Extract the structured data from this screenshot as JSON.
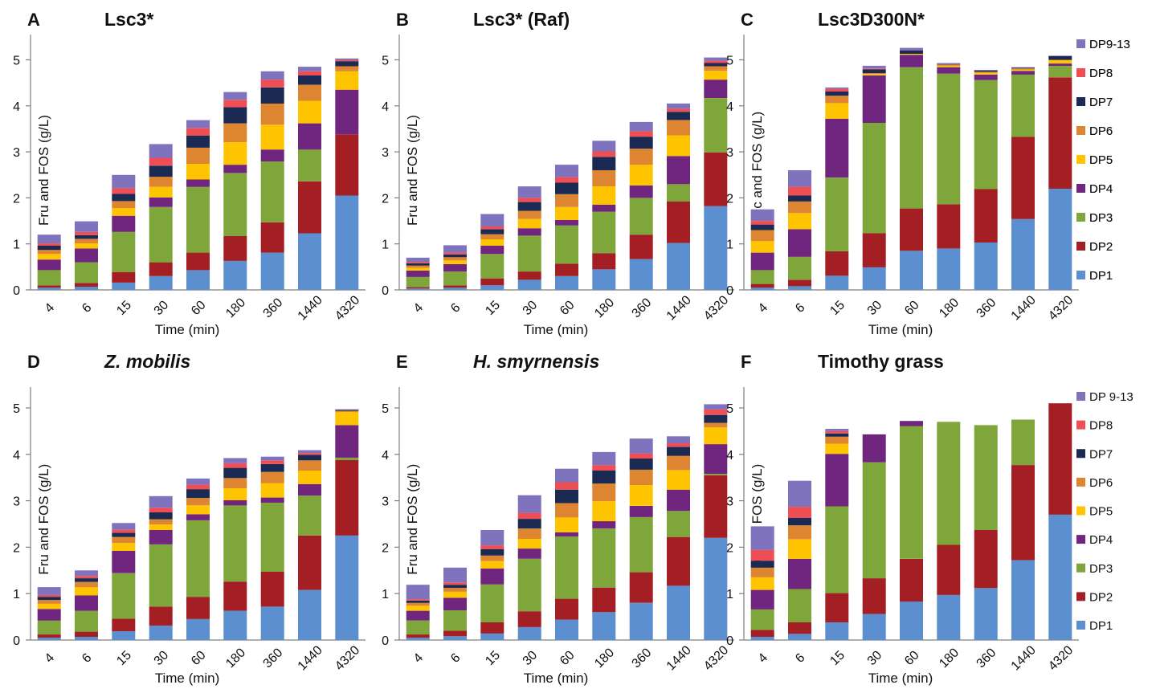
{
  "colors": {
    "DP1": "#5b8fd0",
    "DP2": "#a31f23",
    "DP3": "#7fa63a",
    "DP4": "#70257e",
    "DP5": "#ffc400",
    "DP6": "#dd8531",
    "DP7": "#1b2a52",
    "DP8": "#f04e55",
    "DP9_13": "#8073be"
  },
  "chart_data": [
    {
      "type": "bar",
      "stacked": true,
      "panel_letter": "A",
      "title": "Lsc3*",
      "title_italic": false,
      "ylabel": "Fru and FOS (g/L)",
      "xlabel": "Time (min)",
      "categories": [
        "4",
        "6",
        "15",
        "30",
        "60",
        "180",
        "360",
        "1440",
        "4320"
      ],
      "ylim": [
        0,
        5.3
      ],
      "yticks": [
        "0",
        "1",
        "2",
        "3",
        "4",
        "5"
      ],
      "legend": true,
      "legend_position": "right",
      "series": [
        {
          "name": "DP1",
          "values": [
            0.05,
            0.07,
            0.16,
            0.3,
            0.43,
            0.63,
            0.81,
            1.23,
            2.05
          ]
        },
        {
          "name": "DP2",
          "values": [
            0.05,
            0.08,
            0.23,
            0.3,
            0.38,
            0.54,
            0.66,
            1.13,
            1.33
          ]
        },
        {
          "name": "DP3",
          "values": [
            0.33,
            0.45,
            0.87,
            1.2,
            1.43,
            1.37,
            1.32,
            0.69,
            0.0
          ]
        },
        {
          "name": "DP4",
          "values": [
            0.23,
            0.3,
            0.35,
            0.21,
            0.16,
            0.18,
            0.26,
            0.57,
            0.97
          ]
        },
        {
          "name": "DP5",
          "values": [
            0.12,
            0.11,
            0.17,
            0.23,
            0.34,
            0.49,
            0.54,
            0.49,
            0.4
          ]
        },
        {
          "name": "DP6",
          "values": [
            0.09,
            0.1,
            0.15,
            0.22,
            0.35,
            0.41,
            0.46,
            0.35,
            0.11
          ]
        },
        {
          "name": "DP7",
          "values": [
            0.09,
            0.08,
            0.16,
            0.24,
            0.26,
            0.35,
            0.35,
            0.2,
            0.11
          ]
        },
        {
          "name": "DP8",
          "values": [
            0.05,
            0.07,
            0.12,
            0.17,
            0.17,
            0.16,
            0.17,
            0.09,
            0.03
          ]
        },
        {
          "name": "DP9-13",
          "values": [
            0.19,
            0.23,
            0.29,
            0.3,
            0.17,
            0.17,
            0.18,
            0.1,
            0.03
          ]
        }
      ]
    },
    {
      "type": "bar",
      "stacked": true,
      "panel_letter": "B",
      "title": "Lsc3* (Raf)",
      "title_italic": false,
      "ylabel": "Fru and FOS (g/L)",
      "xlabel": "Time (min)",
      "categories": [
        "4",
        "6",
        "15",
        "30",
        "60",
        "180",
        "360",
        "1440",
        "4320"
      ],
      "ylim": [
        0,
        5.3
      ],
      "yticks": [
        "0",
        "1",
        "2",
        "3",
        "4",
        "5"
      ],
      "legend": false,
      "series": [
        {
          "name": "DP1",
          "values": [
            0.03,
            0.05,
            0.1,
            0.22,
            0.3,
            0.45,
            0.67,
            1.02,
            1.82
          ]
        },
        {
          "name": "DP2",
          "values": [
            0.03,
            0.05,
            0.15,
            0.18,
            0.27,
            0.35,
            0.53,
            0.9,
            1.17
          ]
        },
        {
          "name": "DP3",
          "values": [
            0.22,
            0.3,
            0.53,
            0.78,
            0.83,
            0.9,
            0.8,
            0.38,
            1.18
          ]
        },
        {
          "name": "DP4",
          "values": [
            0.14,
            0.16,
            0.18,
            0.16,
            0.12,
            0.15,
            0.27,
            0.61,
            0.4
          ]
        },
        {
          "name": "DP5",
          "values": [
            0.06,
            0.08,
            0.14,
            0.2,
            0.28,
            0.4,
            0.45,
            0.45,
            0.19
          ]
        },
        {
          "name": "DP6",
          "values": [
            0.05,
            0.07,
            0.11,
            0.18,
            0.28,
            0.35,
            0.35,
            0.33,
            0.1
          ]
        },
        {
          "name": "DP7",
          "values": [
            0.05,
            0.06,
            0.11,
            0.19,
            0.25,
            0.29,
            0.26,
            0.18,
            0.07
          ]
        },
        {
          "name": "DP8",
          "values": [
            0.03,
            0.04,
            0.06,
            0.09,
            0.12,
            0.12,
            0.12,
            0.07,
            0.05
          ]
        },
        {
          "name": "DP9-13",
          "values": [
            0.09,
            0.16,
            0.27,
            0.25,
            0.27,
            0.23,
            0.2,
            0.11,
            0.07
          ]
        }
      ]
    },
    {
      "type": "bar",
      "stacked": true,
      "panel_letter": "C",
      "title": "Lsc3D300N*",
      "title_italic": false,
      "ylabel": "Fruc and FOS (g/L)",
      "xlabel": "Time (min)",
      "categories": [
        "4",
        "6",
        "15",
        "30",
        "60",
        "180",
        "360",
        "1440",
        "4320"
      ],
      "ylim": [
        0,
        5.3
      ],
      "yticks": [
        "0",
        "1",
        "2",
        "3",
        "4",
        "5"
      ],
      "legend": true,
      "legend_position": "right",
      "series": [
        {
          "name": "DP1",
          "values": [
            0.05,
            0.08,
            0.31,
            0.49,
            0.85,
            0.9,
            1.03,
            1.54,
            2.2
          ]
        },
        {
          "name": "DP2",
          "values": [
            0.08,
            0.14,
            0.53,
            0.74,
            0.92,
            0.96,
            1.16,
            1.79,
            2.42
          ]
        },
        {
          "name": "DP3",
          "values": [
            0.3,
            0.5,
            1.6,
            2.4,
            3.07,
            2.84,
            2.37,
            1.35,
            0.25
          ]
        },
        {
          "name": "DP4",
          "values": [
            0.38,
            0.6,
            1.28,
            1.03,
            0.27,
            0.14,
            0.12,
            0.08,
            0.05
          ]
        },
        {
          "name": "DP5",
          "values": [
            0.25,
            0.35,
            0.34,
            0.03,
            0.02,
            0.03,
            0.04,
            0.03,
            0.07
          ]
        },
        {
          "name": "DP6",
          "values": [
            0.24,
            0.25,
            0.16,
            0.02,
            0.0,
            0.03,
            0.02,
            0.02,
            0.01
          ]
        },
        {
          "name": "DP7",
          "values": [
            0.12,
            0.13,
            0.09,
            0.08,
            0.07,
            0.01,
            0.03,
            0.02,
            0.08
          ]
        },
        {
          "name": "DP8",
          "values": [
            0.08,
            0.19,
            0.06,
            0.02,
            0.0,
            0.0,
            0.0,
            0.0,
            0.0
          ]
        },
        {
          "name": "DP9-13",
          "values": [
            0.25,
            0.36,
            0.03,
            0.06,
            0.06,
            0.02,
            0.01,
            0.01,
            0.01
          ]
        }
      ]
    },
    {
      "type": "bar",
      "stacked": true,
      "panel_letter": "D",
      "title": "Z. mobilis",
      "title_italic": true,
      "ylabel": "Fru and FOS (g/L)",
      "xlabel": "Time (min)",
      "categories": [
        "4",
        "6",
        "15",
        "30",
        "60",
        "180",
        "360",
        "1440",
        "4320"
      ],
      "ylim": [
        0,
        5.3
      ],
      "yticks": [
        "0",
        "1",
        "2",
        "3",
        "4",
        "5"
      ],
      "legend": false,
      "series": [
        {
          "name": "DP1",
          "values": [
            0.05,
            0.07,
            0.19,
            0.31,
            0.45,
            0.63,
            0.72,
            1.08,
            2.25
          ]
        },
        {
          "name": "DP2",
          "values": [
            0.07,
            0.11,
            0.27,
            0.41,
            0.48,
            0.63,
            0.75,
            1.17,
            1.63
          ]
        },
        {
          "name": "DP3",
          "values": [
            0.3,
            0.45,
            0.98,
            1.34,
            1.65,
            1.64,
            1.49,
            0.86,
            0.05
          ]
        },
        {
          "name": "DP4",
          "values": [
            0.25,
            0.33,
            0.48,
            0.31,
            0.13,
            0.11,
            0.11,
            0.25,
            0.7
          ]
        },
        {
          "name": "DP5",
          "values": [
            0.11,
            0.18,
            0.17,
            0.12,
            0.19,
            0.26,
            0.31,
            0.29,
            0.28
          ]
        },
        {
          "name": "DP6",
          "values": [
            0.08,
            0.11,
            0.13,
            0.11,
            0.16,
            0.22,
            0.24,
            0.22,
            0.03
          ]
        },
        {
          "name": "DP7",
          "values": [
            0.07,
            0.08,
            0.09,
            0.15,
            0.19,
            0.22,
            0.17,
            0.12,
            0.02
          ]
        },
        {
          "name": "DP8",
          "values": [
            0.04,
            0.05,
            0.07,
            0.1,
            0.1,
            0.1,
            0.08,
            0.04,
            0.0
          ]
        },
        {
          "name": "DP9-13",
          "values": [
            0.17,
            0.12,
            0.14,
            0.25,
            0.13,
            0.11,
            0.08,
            0.06,
            0.01
          ]
        }
      ]
    },
    {
      "type": "bar",
      "stacked": true,
      "panel_letter": "E",
      "title": "H. smyrnensis",
      "title_italic": true,
      "ylabel": "Fru and FOS (g/L)",
      "xlabel": "Time (min)",
      "categories": [
        "4",
        "6",
        "15",
        "30",
        "60",
        "180",
        "360",
        "1440",
        "4320"
      ],
      "ylim": [
        0,
        5.3
      ],
      "yticks": [
        "0",
        "1",
        "2",
        "3",
        "4",
        "5"
      ],
      "legend": false,
      "series": [
        {
          "name": "DP1",
          "values": [
            0.05,
            0.08,
            0.14,
            0.28,
            0.44,
            0.6,
            0.8,
            1.17,
            2.2
          ]
        },
        {
          "name": "DP2",
          "values": [
            0.07,
            0.12,
            0.24,
            0.34,
            0.45,
            0.53,
            0.66,
            1.05,
            1.35
          ]
        },
        {
          "name": "DP3",
          "values": [
            0.3,
            0.44,
            0.82,
            1.13,
            1.34,
            1.27,
            1.19,
            0.56,
            0.03
          ]
        },
        {
          "name": "DP4",
          "values": [
            0.21,
            0.27,
            0.34,
            0.22,
            0.09,
            0.16,
            0.24,
            0.46,
            0.64
          ]
        },
        {
          "name": "DP5",
          "values": [
            0.11,
            0.13,
            0.16,
            0.21,
            0.32,
            0.43,
            0.45,
            0.42,
            0.36
          ]
        },
        {
          "name": "DP6",
          "values": [
            0.06,
            0.08,
            0.12,
            0.22,
            0.31,
            0.38,
            0.33,
            0.31,
            0.1
          ]
        },
        {
          "name": "DP7",
          "values": [
            0.05,
            0.07,
            0.14,
            0.21,
            0.29,
            0.28,
            0.24,
            0.19,
            0.17
          ]
        },
        {
          "name": "DP8",
          "values": [
            0.03,
            0.05,
            0.08,
            0.13,
            0.16,
            0.12,
            0.11,
            0.08,
            0.12
          ]
        },
        {
          "name": "DP9-13",
          "values": [
            0.31,
            0.32,
            0.33,
            0.38,
            0.29,
            0.28,
            0.32,
            0.15,
            0.11
          ]
        }
      ]
    },
    {
      "type": "bar",
      "stacked": true,
      "panel_letter": "F",
      "title": "Timothy grass",
      "title_italic": false,
      "ylabel": "Fru and FOS (g/L)",
      "xlabel": "Time (min)",
      "categories": [
        "4",
        "6",
        "15",
        "30",
        "60",
        "180",
        "360",
        "1440",
        "4320"
      ],
      "ylim": [
        0,
        5.3
      ],
      "yticks": [
        "0",
        "1",
        "2",
        "3",
        "4",
        "5"
      ],
      "legend": true,
      "legend_position": "right",
      "series": [
        {
          "name": "DP1",
          "values": [
            0.07,
            0.13,
            0.38,
            0.56,
            0.83,
            0.97,
            1.12,
            1.72,
            2.7
          ]
        },
        {
          "name": "DP2",
          "values": [
            0.15,
            0.25,
            0.63,
            0.77,
            0.92,
            1.08,
            1.25,
            2.05,
            2.4
          ]
        },
        {
          "name": "DP3",
          "values": [
            0.44,
            0.72,
            1.87,
            2.5,
            2.86,
            2.65,
            2.26,
            0.98,
            0.0
          ]
        },
        {
          "name": "DP4",
          "values": [
            0.42,
            0.65,
            1.13,
            0.6,
            0.11,
            0.0,
            0.0,
            0.0,
            0.0
          ]
        },
        {
          "name": "DP5",
          "values": [
            0.27,
            0.42,
            0.22,
            0.0,
            0.0,
            0.0,
            0.0,
            0.0,
            0.0
          ]
        },
        {
          "name": "DP6",
          "values": [
            0.21,
            0.3,
            0.15,
            0.0,
            0.0,
            0.0,
            0.0,
            0.0,
            0.0
          ]
        },
        {
          "name": "DP7",
          "values": [
            0.15,
            0.16,
            0.07,
            0.0,
            0.0,
            0.0,
            0.0,
            0.0,
            0.0
          ]
        },
        {
          "name": "DP8",
          "values": [
            0.23,
            0.24,
            0.05,
            0.0,
            0.0,
            0.0,
            0.0,
            0.0,
            0.0
          ]
        },
        {
          "name": "DP 9-13",
          "values": [
            0.51,
            0.56,
            0.05,
            0.0,
            0.0,
            0.0,
            0.0,
            0.0,
            0.0
          ]
        }
      ]
    }
  ]
}
